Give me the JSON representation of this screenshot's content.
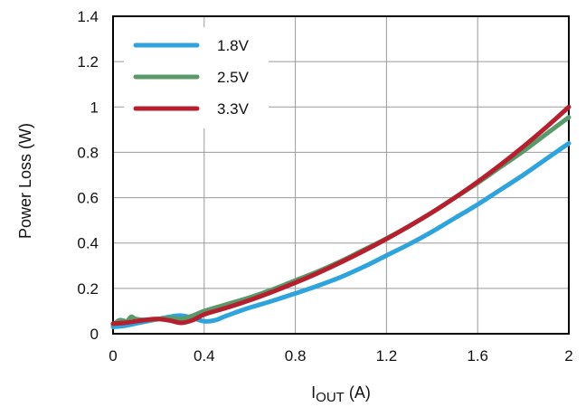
{
  "chart_data": {
    "type": "line",
    "xlabel_main": "I",
    "xlabel_sub": "OUT",
    "xlabel_unit": " (A)",
    "ylabel": "Power Loss (W)",
    "xlim": [
      0,
      2
    ],
    "ylim": [
      0,
      1.4
    ],
    "x_ticks": [
      "0",
      "0.4",
      "0.8",
      "1.2",
      "1.6",
      "2"
    ],
    "y_ticks": [
      "0",
      "0.2",
      "0.4",
      "0.6",
      "0.8",
      "1",
      "1.2",
      "1.4"
    ],
    "grid": true,
    "legend_position": "top-left",
    "series": [
      {
        "name": "1.8V",
        "color": "#2ea3dc",
        "x": [
          0,
          0.05,
          0.1,
          0.15,
          0.2,
          0.25,
          0.3,
          0.35,
          0.4,
          0.45,
          0.5,
          0.6,
          0.7,
          0.8,
          0.9,
          1.0,
          1.1,
          1.2,
          1.3,
          1.4,
          1.5,
          1.6,
          1.7,
          1.8,
          1.9,
          2.0
        ],
        "y": [
          0.03,
          0.035,
          0.045,
          0.055,
          0.065,
          0.075,
          0.08,
          0.07,
          0.055,
          0.06,
          0.08,
          0.115,
          0.145,
          0.178,
          0.212,
          0.25,
          0.295,
          0.345,
          0.395,
          0.45,
          0.51,
          0.57,
          0.635,
          0.7,
          0.77,
          0.84
        ]
      },
      {
        "name": "2.5V",
        "color": "#5a9a6a",
        "x": [
          0,
          0.03,
          0.06,
          0.08,
          0.1,
          0.15,
          0.2,
          0.25,
          0.3,
          0.35,
          0.4,
          0.5,
          0.6,
          0.7,
          0.8,
          0.9,
          1.0,
          1.1,
          1.2,
          1.3,
          1.4,
          1.5,
          1.6,
          1.7,
          1.8,
          1.9,
          2.0
        ],
        "y": [
          0.04,
          0.06,
          0.055,
          0.075,
          0.065,
          0.06,
          0.065,
          0.07,
          0.065,
          0.08,
          0.1,
          0.13,
          0.16,
          0.195,
          0.235,
          0.275,
          0.32,
          0.37,
          0.42,
          0.475,
          0.535,
          0.6,
          0.665,
          0.735,
          0.805,
          0.88,
          0.955
        ]
      },
      {
        "name": "3.3V",
        "color": "#b5202e",
        "x": [
          0,
          0.05,
          0.1,
          0.15,
          0.2,
          0.25,
          0.3,
          0.35,
          0.4,
          0.5,
          0.6,
          0.7,
          0.8,
          0.9,
          1.0,
          1.1,
          1.2,
          1.3,
          1.4,
          1.5,
          1.6,
          1.7,
          1.8,
          1.9,
          2.0
        ],
        "y": [
          0.045,
          0.048,
          0.055,
          0.062,
          0.065,
          0.058,
          0.048,
          0.06,
          0.085,
          0.115,
          0.148,
          0.185,
          0.225,
          0.268,
          0.315,
          0.365,
          0.418,
          0.475,
          0.535,
          0.6,
          0.67,
          0.745,
          0.825,
          0.91,
          1.0
        ]
      }
    ]
  }
}
